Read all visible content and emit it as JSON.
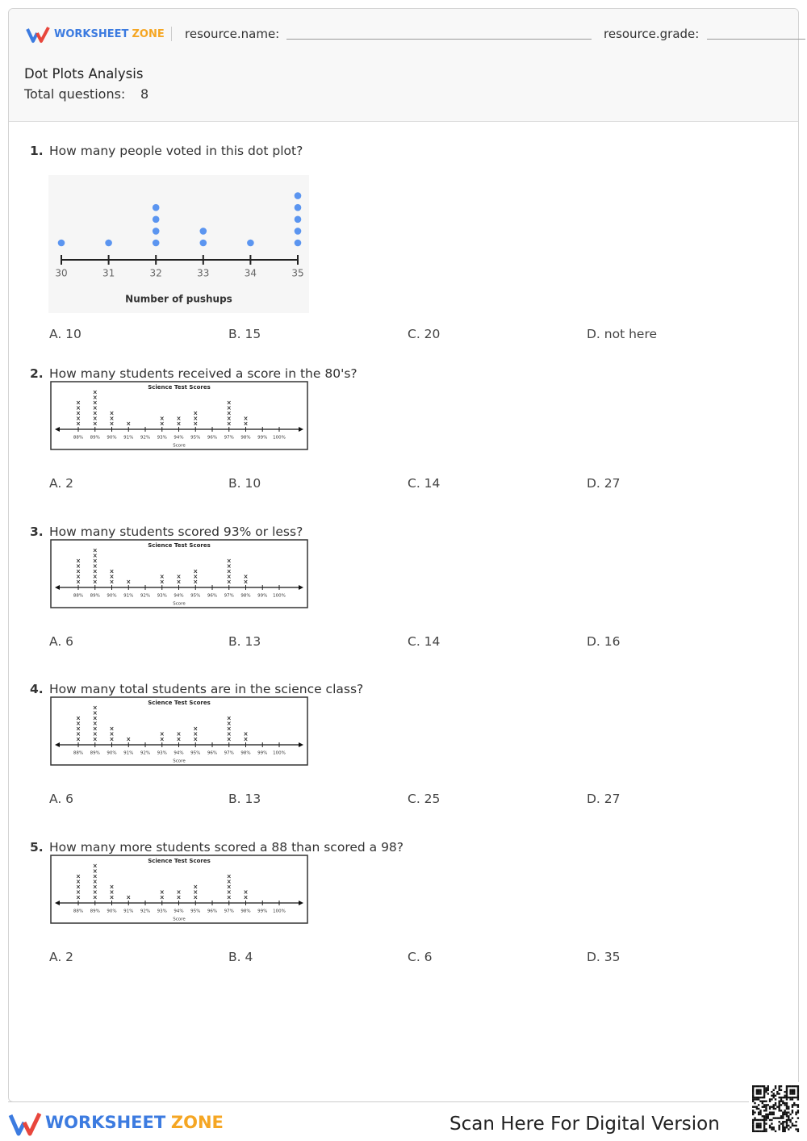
{
  "header": {
    "logo": {
      "word1": "WORKSHEET",
      "word2": "ZONE"
    },
    "name_label": "resource.name:",
    "grade_label": "resource.grade:",
    "title": "Dot Plots Analysis",
    "total_label": "Total questions:",
    "total_value": "8"
  },
  "questions": [
    {
      "number": "1.",
      "text": "How many people voted in this dot plot?",
      "figure": {
        "type": "dot",
        "marker": "circle",
        "color": "#5b95f0",
        "categories": [
          "30",
          "31",
          "32",
          "33",
          "34",
          "35"
        ],
        "values": [
          1,
          1,
          4,
          2,
          1,
          5
        ],
        "x_label": "Number of pushups"
      },
      "options": [
        "A. 10",
        "B. 15",
        "C. 20",
        "D. not here"
      ]
    },
    {
      "number": "2.",
      "text": "How many students received a score in the 80's?",
      "figure": {
        "type": "dot",
        "marker": "x",
        "color": "#222222",
        "title": "Science Test Scores",
        "categories": [
          "88%",
          "89%",
          "90%",
          "91%",
          "92%",
          "93%",
          "94%",
          "95%",
          "96%",
          "97%",
          "98%",
          "99%",
          "100%"
        ],
        "values": [
          5,
          7,
          3,
          1,
          0,
          2,
          2,
          3,
          0,
          5,
          2,
          0,
          0
        ],
        "x_label": "Score"
      },
      "options": [
        "A. 2",
        "B. 10",
        "C. 14",
        "D. 27"
      ]
    },
    {
      "number": "3.",
      "text": "How many students scored 93% or less?",
      "figure": {
        "type": "dot",
        "marker": "x",
        "color": "#222222",
        "title": "Science Test Scores",
        "categories": [
          "88%",
          "89%",
          "90%",
          "91%",
          "92%",
          "93%",
          "94%",
          "95%",
          "96%",
          "97%",
          "98%",
          "99%",
          "100%"
        ],
        "values": [
          5,
          7,
          3,
          1,
          0,
          2,
          2,
          3,
          0,
          5,
          2,
          0,
          0
        ],
        "x_label": "Score"
      },
      "options": [
        "A. 6",
        "B. 13",
        "C. 14",
        "D. 16"
      ]
    },
    {
      "number": "4.",
      "text": "How many total students are in the science class?",
      "figure": {
        "type": "dot",
        "marker": "x",
        "color": "#222222",
        "title": "Science Test Scores",
        "categories": [
          "88%",
          "89%",
          "90%",
          "91%",
          "92%",
          "93%",
          "94%",
          "95%",
          "96%",
          "97%",
          "98%",
          "99%",
          "100%"
        ],
        "values": [
          5,
          7,
          3,
          1,
          0,
          2,
          2,
          3,
          0,
          5,
          2,
          0,
          0
        ],
        "x_label": "Score"
      },
      "options": [
        "A. 6",
        "B. 13",
        "C. 25",
        "D. 27"
      ]
    },
    {
      "number": "5.",
      "text": "How many more students scored a 88 than scored a 98?",
      "figure": {
        "type": "dot",
        "marker": "x",
        "color": "#222222",
        "title": "Science Test Scores",
        "categories": [
          "88%",
          "89%",
          "90%",
          "91%",
          "92%",
          "93%",
          "94%",
          "95%",
          "96%",
          "97%",
          "98%",
          "99%",
          "100%"
        ],
        "values": [
          5,
          7,
          3,
          1,
          0,
          2,
          2,
          3,
          0,
          5,
          2,
          0,
          0
        ],
        "x_label": "Score"
      },
      "options": [
        "A. 2",
        "B. 4",
        "C. 6",
        "D. 35"
      ]
    }
  ],
  "footer": {
    "logo": {
      "word1": "WORKSHEET",
      "word2": "ZONE"
    },
    "scan_text": "Scan Here For Digital Version"
  }
}
